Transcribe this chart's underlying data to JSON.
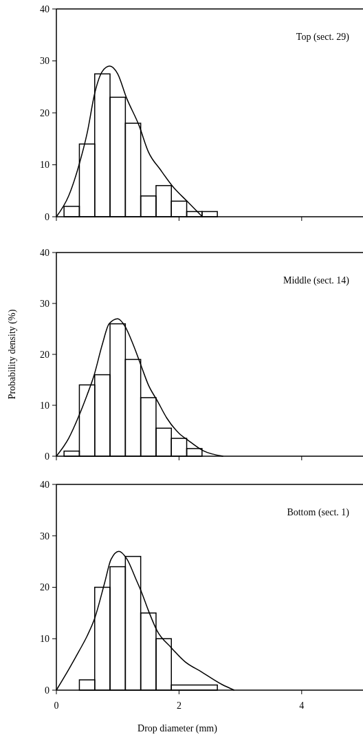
{
  "chart_data": [
    {
      "type": "histogram",
      "title": "Top (sect. 29)",
      "color": "#000000",
      "bins": [
        0.125,
        0.375,
        0.625,
        0.875,
        1.125,
        1.375,
        1.625,
        1.875,
        2.125,
        2.375,
        2.625
      ],
      "values": [
        2,
        14,
        27.5,
        23,
        18,
        4,
        6,
        3,
        1,
        1
      ],
      "series": [
        {
          "type": "line",
          "color": "#000000",
          "x": [
            0,
            0.2,
            0.37,
            0.5,
            0.63,
            0.75,
            0.87,
            1.0,
            1.14,
            1.35,
            1.5,
            1.7,
            1.9,
            2.13,
            2.38
          ],
          "values": [
            0,
            4,
            10,
            16,
            24,
            28,
            29,
            27.5,
            23,
            17.5,
            12.5,
            9,
            5.8,
            3,
            0
          ]
        }
      ],
      "xlim": [
        0,
        5
      ],
      "xticks": [
        0,
        2,
        4
      ],
      "ylim": [
        0,
        40
      ],
      "yticks": [
        0,
        10,
        20,
        30,
        40
      ],
      "tick_labels": "y"
    },
    {
      "type": "histogram",
      "title": "Middle (sect. 14)",
      "ylabel": "Probability density (%)",
      "color": "#000000",
      "bins": [
        0.125,
        0.375,
        0.625,
        0.875,
        1.125,
        1.375,
        1.625,
        1.875,
        2.125,
        2.375
      ],
      "values": [
        1,
        14,
        16,
        26,
        19,
        11.5,
        5.5,
        3.5,
        1.5
      ],
      "series": [
        {
          "type": "line",
          "color": "#000000",
          "x": [
            0,
            0.2,
            0.37,
            0.5,
            0.61,
            0.75,
            0.86,
            1.0,
            1.12,
            1.25,
            1.39,
            1.5,
            1.65,
            1.8,
            2.0,
            2.15,
            2.39,
            2.72
          ],
          "values": [
            0,
            3.5,
            8,
            12,
            15.7,
            22,
            26,
            27,
            25.5,
            22,
            17.5,
            14,
            10.8,
            7.5,
            4.5,
            3.1,
            1.1,
            0
          ]
        }
      ],
      "xlim": [
        0,
        5
      ],
      "xticks": [
        0,
        2,
        4
      ],
      "ylim": [
        0,
        40
      ],
      "yticks": [
        0,
        10,
        20,
        30,
        40
      ],
      "tick_labels": "y"
    },
    {
      "type": "histogram",
      "title": "Bottom (sect. 1)",
      "xlabel": "Drop diameter (mm)",
      "color": "#000000",
      "bins": [
        0.375,
        0.625,
        0.875,
        1.125,
        1.375,
        1.625,
        1.875,
        2.625
      ],
      "values": [
        2,
        20,
        24,
        26,
        15,
        10,
        1
      ],
      "series": [
        {
          "type": "line",
          "color": "#000000",
          "x": [
            0,
            0.2,
            0.37,
            0.5,
            0.62,
            0.79,
            0.89,
            1.02,
            1.15,
            1.3,
            1.39,
            1.5,
            1.64,
            1.87,
            2.1,
            2.36,
            2.7,
            2.9
          ],
          "values": [
            0,
            4,
            7.6,
            10.5,
            13.8,
            21,
            25.4,
            27,
            25.5,
            21.5,
            19,
            15.5,
            11.6,
            8.3,
            5.5,
            3.6,
            1.1,
            0
          ]
        }
      ],
      "xlim": [
        0,
        5
      ],
      "xticks": [
        0,
        2,
        4
      ],
      "ylim": [
        0,
        40
      ],
      "yticks": [
        0,
        10,
        20,
        30,
        40
      ]
    }
  ]
}
